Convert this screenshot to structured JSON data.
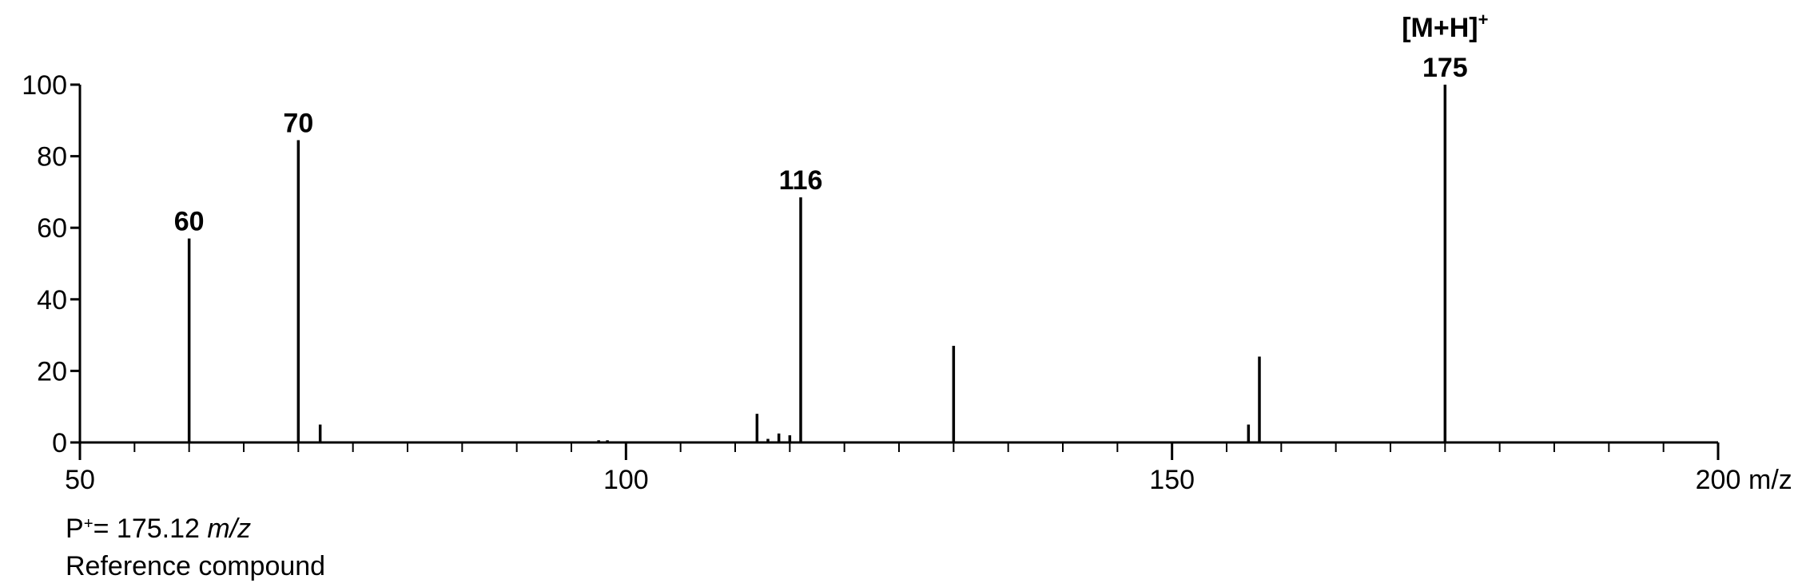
{
  "chart_data": {
    "type": "bar",
    "subtype": "stick spectrum",
    "xlabel": "m/z",
    "ylabel": "",
    "xlim": [
      50,
      200
    ],
    "ylim": [
      0,
      100
    ],
    "x_ticks_major": [
      50,
      100,
      150,
      200
    ],
    "x_tick_minor_step": 5,
    "y_ticks": [
      0,
      20,
      40,
      60,
      80,
      100
    ],
    "grid": false,
    "legend": "none",
    "peaks": [
      {
        "mz": 60,
        "intensity": 57
      },
      {
        "mz": 70,
        "intensity": 84.5
      },
      {
        "mz": 72,
        "intensity": 5
      },
      {
        "mz": 97.5,
        "intensity": 0.6
      },
      {
        "mz": 98.3,
        "intensity": 0.6
      },
      {
        "mz": 112,
        "intensity": 8
      },
      {
        "mz": 113,
        "intensity": 1
      },
      {
        "mz": 114,
        "intensity": 2.5
      },
      {
        "mz": 115,
        "intensity": 2
      },
      {
        "mz": 116,
        "intensity": 68.5
      },
      {
        "mz": 130,
        "intensity": 27
      },
      {
        "mz": 157,
        "intensity": 5
      },
      {
        "mz": 158,
        "intensity": 24
      },
      {
        "mz": 175,
        "intensity": 100
      }
    ],
    "peak_labels": [
      {
        "mz": 60,
        "text": "60"
      },
      {
        "mz": 70,
        "text": "70"
      },
      {
        "mz": 116,
        "text": "116"
      },
      {
        "mz": 175,
        "text": "175",
        "ion_text": "[M+H]",
        "ion_sup": "+"
      }
    ]
  },
  "caption": {
    "precursor_prefix": "P",
    "precursor_sup": "+",
    "precursor_value": "= 175.12",
    "precursor_unit": "m/z",
    "compound_type": "Reference compound"
  }
}
